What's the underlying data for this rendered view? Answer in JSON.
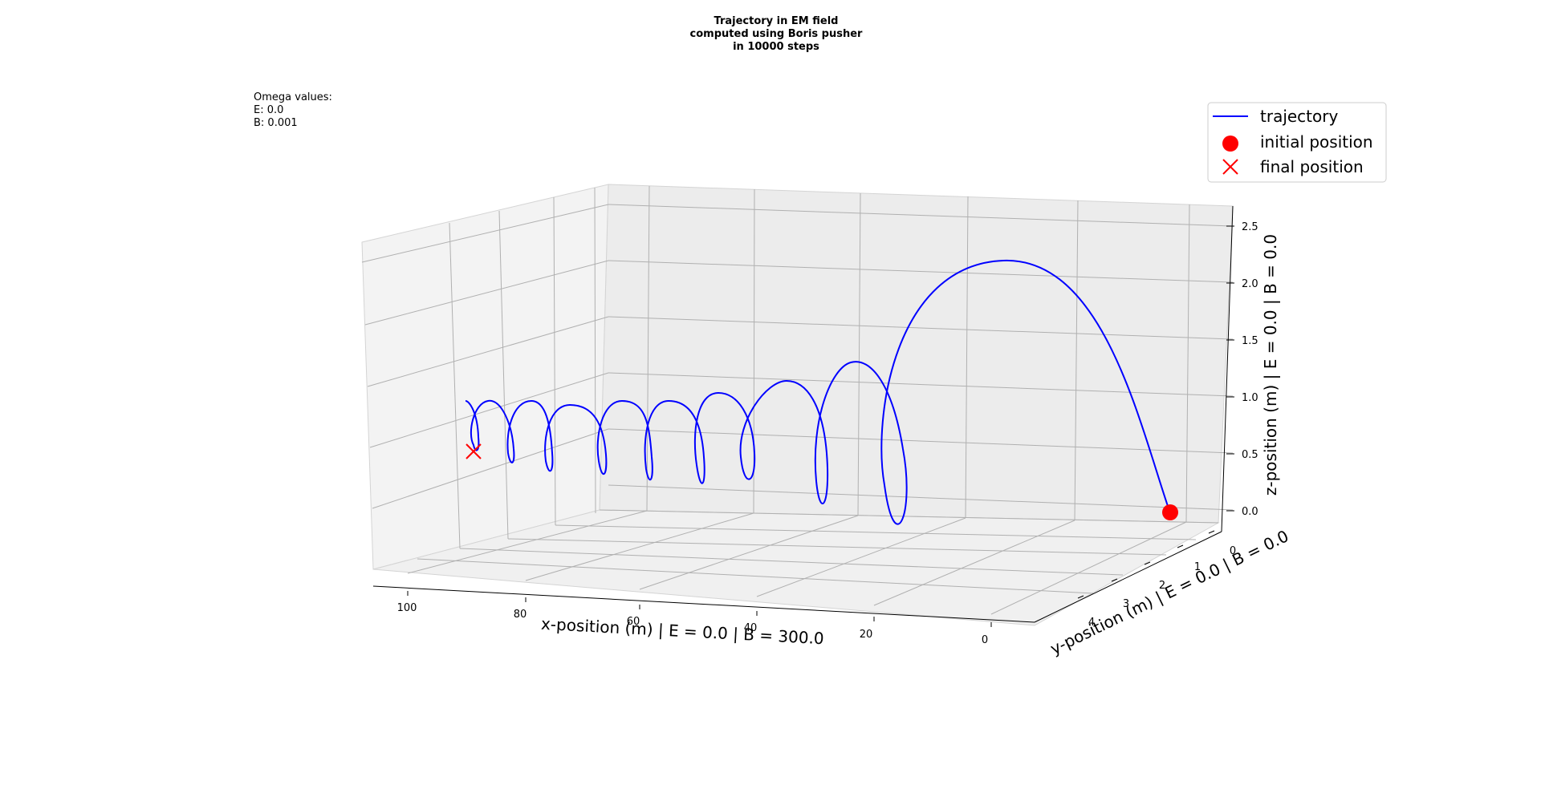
{
  "chart_data": {
    "type": "line",
    "projection": "3d",
    "title_lines": [
      "Trajectory in EM field",
      "computed using Boris pusher",
      "in 10000 steps"
    ],
    "annotation_lines": [
      "Omega values:",
      "E: 0.0",
      "B: 0.001"
    ],
    "xlabel": "x-position (m) | E = 0.0 | B = 300.0",
    "ylabel": "y-position (m) | E = 0.0 | B = 0.0",
    "zlabel": "z-position (m) | E = 0.0 | B = 0.0",
    "xlim": [
      -5,
      112
    ],
    "ylim": [
      0,
      4.5
    ],
    "zlim": [
      0,
      2.55
    ],
    "x_ticks": [
      "100",
      "80",
      "60",
      "40",
      "20",
      "0"
    ],
    "y_ticks": [
      "0",
      "1",
      "2",
      "3",
      "4"
    ],
    "z_ticks": [
      "0.0",
      "0.5",
      "1.0",
      "1.5",
      "2.0",
      "2.5"
    ],
    "grid": true,
    "legend_position": "top-right",
    "legend": [
      {
        "label": "trajectory",
        "marker": "line"
      },
      {
        "label": "initial position",
        "marker": "circle"
      },
      {
        "label": "final position",
        "marker": "x"
      }
    ],
    "series": [
      {
        "name": "trajectory",
        "color": "#0000ff",
        "x": [
          0,
          28.5,
          37.2,
          44.5,
          51.0,
          56.8,
          62.0,
          66.8,
          71.2,
          75.2,
          78.9,
          82.2,
          85.4,
          88.5,
          91.4,
          93.6
        ],
        "y": [
          0.05,
          4.0,
          0.1,
          3.85,
          0.15,
          3.6,
          0.2,
          3.4,
          0.25,
          3.2,
          0.3,
          3.0,
          0.35,
          2.8,
          0.4,
          1.0
        ],
        "z": [
          0.0,
          2.3,
          0.05,
          1.36,
          0.1,
          1.15,
          0.15,
          0.98,
          0.2,
          0.83,
          0.25,
          0.71,
          0.3,
          0.62,
          0.35,
          0.4
        ]
      }
    ],
    "initial_position": {
      "label": "initial position",
      "x": 0.0,
      "y": 0.0,
      "z": 0.0,
      "color": "#ff0000"
    },
    "final_position": {
      "label": "final position",
      "x": 92.7,
      "y": 1.0,
      "z": 0.4,
      "color": "#ff0000"
    }
  }
}
